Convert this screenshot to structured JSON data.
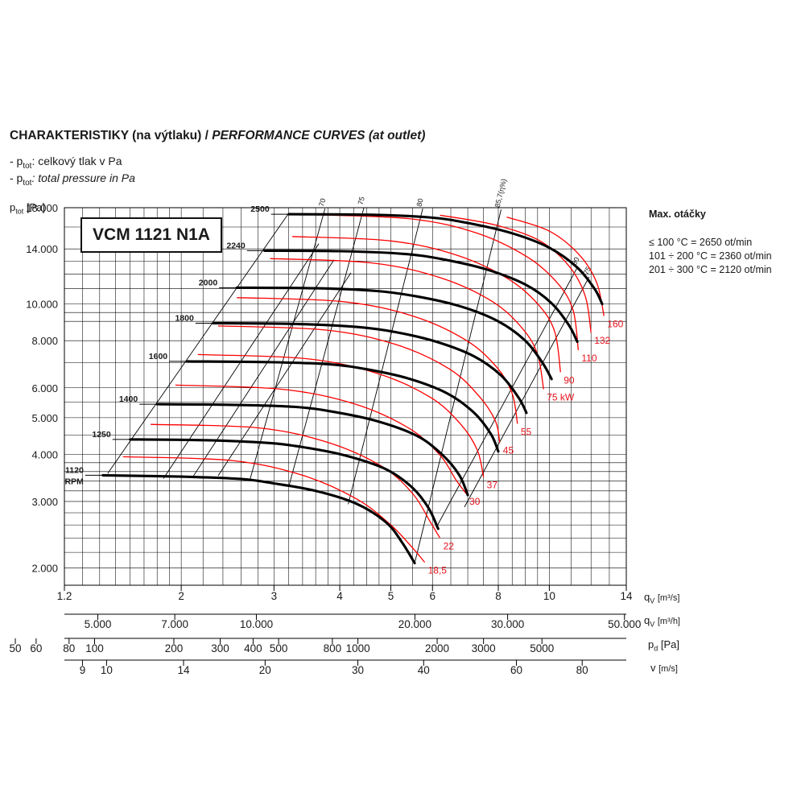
{
  "heading": {
    "bold": "CHARAKTERISTIKY (na výtlaku) / ",
    "italic": "PERFORMANCE CURVES (at outlet)"
  },
  "notes": [
    {
      "prefix": "- p",
      "sub": "tot",
      "text": ": celkový tlak v Pa",
      "italic": false
    },
    {
      "prefix": "- p",
      "sub": "tot",
      "text": ": total pressure in Pa",
      "italic": true
    }
  ],
  "model": "VCM 1121 N1A",
  "max_speed": {
    "title": "Max. otáčky",
    "lines": [
      "≤ 100 °C = 2650 ot/min",
      "101 ÷ 200 °C = 2360 ot/min",
      "201 ÷ 300 °C = 2120 ot/min"
    ]
  },
  "colors": {
    "speed_curve": "#000000",
    "power_curve": "#ff0000",
    "efficiency_line": "#000000",
    "grid": "#000000",
    "power_label": "#e8141e"
  },
  "chart_data": {
    "type": "line",
    "x_scale": "log",
    "y_scale": "log",
    "x_range": [
      1.2,
      14
    ],
    "y_range": [
      1800,
      18000
    ],
    "y_axis": {
      "label": "p",
      "sub": "tot",
      "unit": "[Pa]",
      "ticks": [
        {
          "v": 2000,
          "label": "2.000"
        },
        {
          "v": 3000,
          "label": "3.000"
        },
        {
          "v": 4000,
          "label": "4.000"
        },
        {
          "v": 5000,
          "label": "5.000"
        },
        {
          "v": 6000,
          "label": "6.000"
        },
        {
          "v": 8000,
          "label": "8.000"
        },
        {
          "v": 10000,
          "label": "10.000"
        },
        {
          "v": 14000,
          "label": "14.000"
        },
        {
          "v": 18000,
          "label": "18.000"
        }
      ]
    },
    "x_axes": [
      {
        "label": "q",
        "sub": "V",
        "unit": "[m³/s]",
        "ticks": [
          {
            "v": 1.2,
            "label": "1.2"
          },
          {
            "v": 2,
            "label": "2"
          },
          {
            "v": 3,
            "label": "3"
          },
          {
            "v": 4,
            "label": "4"
          },
          {
            "v": 5,
            "label": "5"
          },
          {
            "v": 6,
            "label": "6"
          },
          {
            "v": 8,
            "label": "8"
          },
          {
            "v": 10,
            "label": "10"
          },
          {
            "v": 14,
            "label": "14"
          }
        ]
      },
      {
        "label": "q",
        "sub": "V",
        "unit": "[m³/h]",
        "factor": 3600,
        "ticks": [
          {
            "v": 5000,
            "label": "5.000"
          },
          {
            "v": 7000,
            "label": "7.000"
          },
          {
            "v": 10000,
            "label": "10.000"
          },
          {
            "v": 20000,
            "label": "20.000"
          },
          {
            "v": 30000,
            "label": "30.000"
          },
          {
            "v": 50000,
            "label": "50.000"
          }
        ]
      },
      {
        "label": "p",
        "sub": "d",
        "unit": "[Pa]",
        "ticks": [
          {
            "v": 50,
            "label": "50"
          },
          {
            "v": 60,
            "label": "60"
          },
          {
            "v": 80,
            "label": "80"
          },
          {
            "v": 100,
            "label": "100"
          },
          {
            "v": 200,
            "label": "200"
          },
          {
            "v": 300,
            "label": "300"
          },
          {
            "v": 400,
            "label": "400"
          },
          {
            "v": 500,
            "label": "500"
          },
          {
            "v": 800,
            "label": "800"
          },
          {
            "v": 1000,
            "label": "1000"
          },
          {
            "v": 2000,
            "label": "2000"
          },
          {
            "v": 3000,
            "label": "3000"
          },
          {
            "v": 5000,
            "label": "5000"
          }
        ]
      },
      {
        "label": "v",
        "sub": "",
        "unit": "[m/s]",
        "ticks": [
          {
            "v": 9,
            "label": "9"
          },
          {
            "v": 10,
            "label": "10"
          },
          {
            "v": 14,
            "label": "14"
          },
          {
            "v": 20,
            "label": "20"
          },
          {
            "v": 30,
            "label": "30"
          },
          {
            "v": 40,
            "label": "40"
          },
          {
            "v": 60,
            "label": "60"
          },
          {
            "v": 80,
            "label": "80"
          }
        ]
      }
    ],
    "speed_curves": [
      {
        "rpm": "1120",
        "extra": "RPM",
        "points": [
          [
            1.42,
            3520
          ],
          [
            2.0,
            3490
          ],
          [
            2.6,
            3440
          ],
          [
            3.0,
            3350
          ],
          [
            3.6,
            3200
          ],
          [
            4.3,
            2960
          ],
          [
            4.9,
            2640
          ],
          [
            5.25,
            2340
          ],
          [
            5.55,
            2060
          ]
        ]
      },
      {
        "rpm": "1250",
        "extra": "",
        "points": [
          [
            1.6,
            4380
          ],
          [
            2.2,
            4360
          ],
          [
            2.9,
            4290
          ],
          [
            3.4,
            4180
          ],
          [
            4.1,
            3970
          ],
          [
            4.9,
            3650
          ],
          [
            5.5,
            3260
          ],
          [
            5.9,
            2880
          ],
          [
            6.15,
            2540
          ]
        ]
      },
      {
        "rpm": "1400",
        "extra": "",
        "points": [
          [
            1.8,
            5430
          ],
          [
            2.5,
            5410
          ],
          [
            3.3,
            5340
          ],
          [
            3.9,
            5180
          ],
          [
            4.7,
            4900
          ],
          [
            5.6,
            4480
          ],
          [
            6.25,
            4000
          ],
          [
            6.75,
            3520
          ],
          [
            7.0,
            3120
          ]
        ]
      },
      {
        "rpm": "1600",
        "extra": "",
        "points": [
          [
            2.05,
            7050
          ],
          [
            2.9,
            7020
          ],
          [
            3.8,
            6930
          ],
          [
            4.5,
            6720
          ],
          [
            5.4,
            6350
          ],
          [
            6.4,
            5800
          ],
          [
            7.2,
            5150
          ],
          [
            7.75,
            4520
          ],
          [
            8.0,
            4070
          ]
        ]
      },
      {
        "rpm": "1800",
        "extra": "",
        "points": [
          [
            2.3,
            8900
          ],
          [
            3.3,
            8860
          ],
          [
            4.3,
            8700
          ],
          [
            5.1,
            8430
          ],
          [
            6.1,
            7950
          ],
          [
            7.2,
            7270
          ],
          [
            8.1,
            6470
          ],
          [
            8.75,
            5640
          ],
          [
            9.05,
            5150
          ]
        ]
      },
      {
        "rpm": "2000",
        "extra": "",
        "points": [
          [
            2.55,
            11050
          ],
          [
            3.6,
            11010
          ],
          [
            4.7,
            10830
          ],
          [
            5.6,
            10480
          ],
          [
            6.8,
            9850
          ],
          [
            8.0,
            9000
          ],
          [
            9.0,
            8000
          ],
          [
            9.7,
            7000
          ],
          [
            10.1,
            6330
          ]
        ]
      },
      {
        "rpm": "2240",
        "extra": "",
        "points": [
          [
            2.88,
            13850
          ],
          [
            4.0,
            13810
          ],
          [
            5.3,
            13580
          ],
          [
            6.3,
            13130
          ],
          [
            7.6,
            12350
          ],
          [
            9.0,
            11270
          ],
          [
            10.1,
            10050
          ],
          [
            10.9,
            8780
          ],
          [
            11.3,
            7950
          ]
        ]
      },
      {
        "rpm": "2500",
        "extra": "",
        "points": [
          [
            3.2,
            17300
          ],
          [
            4.5,
            17250
          ],
          [
            5.9,
            16970
          ],
          [
            7.0,
            16400
          ],
          [
            8.5,
            15400
          ],
          [
            10.0,
            14100
          ],
          [
            11.3,
            12500
          ],
          [
            12.2,
            10950
          ],
          [
            12.6,
            10000
          ]
        ]
      }
    ],
    "efficiency_lines": [
      {
        "label": "",
        "points": [
          [
            1.45,
            3560
          ],
          [
            3.2,
            17400
          ]
        ]
      },
      {
        "label": "",
        "points": [
          [
            1.85,
            3450
          ],
          [
            3.65,
            14450
          ]
        ]
      },
      {
        "label": "",
        "points": [
          [
            2.1,
            3470
          ],
          [
            3.9,
            13100
          ]
        ]
      },
      {
        "label": "",
        "points": [
          [
            2.35,
            3510
          ],
          [
            4.2,
            12100
          ]
        ]
      },
      {
        "label": "70",
        "points": [
          [
            2.7,
            3420
          ],
          [
            3.75,
            17900
          ]
        ]
      },
      {
        "label": "75",
        "points": [
          [
            3.2,
            3280
          ],
          [
            4.45,
            18100
          ]
        ]
      },
      {
        "label": "80",
        "points": [
          [
            4.15,
            2950
          ],
          [
            5.75,
            17900
          ]
        ]
      },
      {
        "label": "85,7(η%)",
        "points": [
          [
            5.55,
            2060
          ],
          [
            8.1,
            17800
          ]
        ]
      },
      {
        "label": "80",
        "points": [
          [
            6.1,
            2560
          ],
          [
            11.3,
            12500
          ]
        ]
      },
      {
        "label": "75",
        "points": [
          [
            6.9,
            2900
          ],
          [
            11.9,
            11800
          ]
        ]
      }
    ],
    "power_curves": [
      {
        "label": "18,5",
        "points": [
          [
            1.55,
            3940
          ],
          [
            2.5,
            3850
          ],
          [
            3.4,
            3520
          ],
          [
            4.3,
            3050
          ],
          [
            5.0,
            2600
          ],
          [
            5.5,
            2260
          ],
          [
            5.8,
            2070
          ]
        ]
      },
      {
        "label": "22",
        "points": [
          [
            1.75,
            4800
          ],
          [
            2.8,
            4700
          ],
          [
            3.8,
            4300
          ],
          [
            4.8,
            3720
          ],
          [
            5.5,
            3150
          ],
          [
            5.95,
            2640
          ],
          [
            6.2,
            2400
          ]
        ]
      },
      {
        "label": "30",
        "points": [
          [
            1.95,
            6100
          ],
          [
            3.1,
            5950
          ],
          [
            4.25,
            5450
          ],
          [
            5.4,
            4700
          ],
          [
            6.2,
            3980
          ],
          [
            6.65,
            3420
          ],
          [
            6.95,
            3150
          ]
        ]
      },
      {
        "label": "37",
        "points": [
          [
            2.15,
            7350
          ],
          [
            3.45,
            7170
          ],
          [
            4.7,
            6560
          ],
          [
            5.95,
            5660
          ],
          [
            6.8,
            4790
          ],
          [
            7.3,
            4100
          ],
          [
            7.5,
            3480
          ]
        ]
      },
      {
        "label": "45",
        "points": [
          [
            2.35,
            8750
          ],
          [
            3.75,
            8540
          ],
          [
            5.1,
            7820
          ],
          [
            6.45,
            6740
          ],
          [
            7.35,
            5710
          ],
          [
            7.9,
            4900
          ],
          [
            8.05,
            4300
          ]
        ]
      },
      {
        "label": "55",
        "points": [
          [
            2.55,
            10400
          ],
          [
            4.05,
            10150
          ],
          [
            5.5,
            9300
          ],
          [
            6.95,
            8020
          ],
          [
            7.95,
            6800
          ],
          [
            8.5,
            5800
          ],
          [
            8.7,
            4820
          ]
        ]
      },
      {
        "label": "75 kW",
        "points": [
          [
            2.95,
            13200
          ],
          [
            4.6,
            12850
          ],
          [
            6.2,
            11750
          ],
          [
            7.8,
            10150
          ],
          [
            8.9,
            8600
          ],
          [
            9.5,
            7350
          ],
          [
            9.75,
            5950
          ]
        ]
      },
      {
        "label": "90",
        "points": [
          [
            3.25,
            15100
          ],
          [
            5.0,
            14700
          ],
          [
            6.7,
            13450
          ],
          [
            8.4,
            11600
          ],
          [
            9.6,
            9850
          ],
          [
            10.25,
            8400
          ],
          [
            10.5,
            6600
          ]
        ]
      },
      {
        "label": "110",
        "points": [
          [
            3.6,
            17250
          ],
          [
            5.5,
            16800
          ],
          [
            7.3,
            15400
          ],
          [
            9.1,
            13300
          ],
          [
            10.4,
            11300
          ],
          [
            11.1,
            9600
          ],
          [
            11.35,
            7550
          ]
        ]
      },
      {
        "label": "132",
        "points": [
          [
            6.2,
            17200
          ],
          [
            7.9,
            16200
          ],
          [
            9.6,
            14700
          ],
          [
            10.9,
            12600
          ],
          [
            11.7,
            10500
          ],
          [
            12.0,
            8400
          ]
        ]
      },
      {
        "label": "160",
        "points": [
          [
            8.3,
            17000
          ],
          [
            10.0,
            15600
          ],
          [
            11.4,
            13500
          ],
          [
            12.3,
            11400
          ],
          [
            12.7,
            9300
          ]
        ]
      }
    ]
  }
}
